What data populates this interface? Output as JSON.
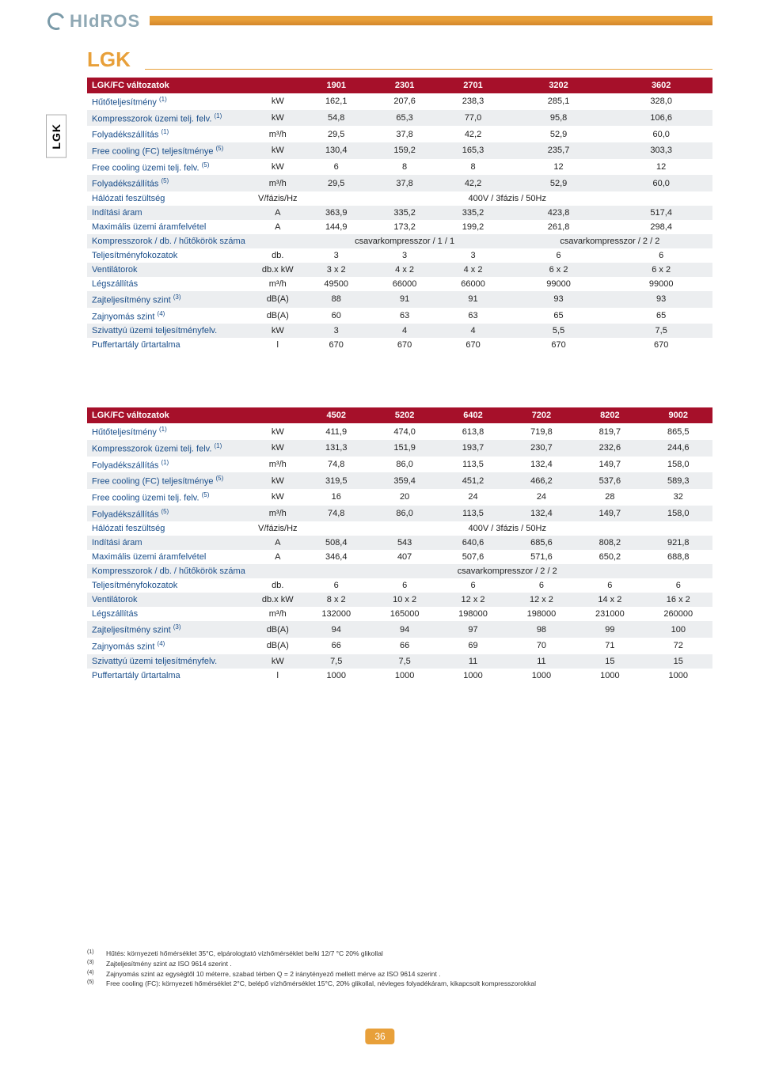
{
  "logo_text": "HIdROS",
  "section_title": "LGK",
  "side_tab": "LGK",
  "page_number": "36",
  "colors": {
    "accent_orange": "#e8a03a",
    "header_red": "#a6102a",
    "row_alt": "#eceef0",
    "label_blue": "#1a4e8a",
    "logo_grey": "#8fa8b4"
  },
  "table1": {
    "header": [
      "LGK/FC változatok",
      "",
      "1901",
      "2301",
      "2701",
      "3202",
      "3602"
    ],
    "rows": [
      {
        "label": "Hűtőteljesítmény",
        "sup": "(1)",
        "unit": "kW",
        "vals": [
          "162,1",
          "207,6",
          "238,3",
          "285,1",
          "328,0"
        ]
      },
      {
        "label": "Kompresszorok üzemi telj. felv.",
        "sup": "(1)",
        "unit": "kW",
        "vals": [
          "54,8",
          "65,3",
          "77,0",
          "95,8",
          "106,6"
        ]
      },
      {
        "label": "Folyadékszállítás",
        "sup": "(1)",
        "unit": "m³/h",
        "vals": [
          "29,5",
          "37,8",
          "42,2",
          "52,9",
          "60,0"
        ]
      },
      {
        "label": "Free cooling (FC) teljesítménye",
        "sup": "(5)",
        "unit": "kW",
        "vals": [
          "130,4",
          "159,2",
          "165,3",
          "235,7",
          "303,3"
        ]
      },
      {
        "label": "Free cooling üzemi telj. felv.",
        "sup": "(5)",
        "unit": "kW",
        "vals": [
          "6",
          "8",
          "8",
          "12",
          "12"
        ]
      },
      {
        "label": "Folyadékszállítás",
        "sup": "(5)",
        "unit": "m³/h",
        "vals": [
          "29,5",
          "37,8",
          "42,2",
          "52,9",
          "60,0"
        ]
      },
      {
        "label": "Hálózati feszültség",
        "unit": "V/fázis/Hz",
        "merged": "400V / 3fázis / 50Hz"
      },
      {
        "label": "Indítási áram",
        "unit": "A",
        "vals": [
          "363,9",
          "335,2",
          "335,2",
          "423,8",
          "517,4"
        ]
      },
      {
        "label": "Maximális üzemi áramfelvétel",
        "unit": "A",
        "vals": [
          "144,9",
          "173,2",
          "199,2",
          "261,8",
          "298,4"
        ]
      },
      {
        "label": "Kompresszorok / db. / hűtőkörök száma",
        "unit": "",
        "split": [
          "csavarkompresszor / 1 / 1",
          "csavarkompresszor / 2 / 2"
        ],
        "split_cols": [
          3,
          2
        ]
      },
      {
        "label": "Teljesítményfokozatok",
        "unit": "db.",
        "vals": [
          "3",
          "3",
          "3",
          "6",
          "6"
        ]
      },
      {
        "label": "Ventilátorok",
        "unit": "db.x kW",
        "vals": [
          "3 x 2",
          "4 x 2",
          "4 x 2",
          "6 x 2",
          "6 x 2"
        ]
      },
      {
        "label": "Légszállítás",
        "unit": "m³/h",
        "vals": [
          "49500",
          "66000",
          "66000",
          "99000",
          "99000"
        ]
      },
      {
        "label": "Zajteljesítmény szint",
        "sup": "(3)",
        "unit": "dB(A)",
        "vals": [
          "88",
          "91",
          "91",
          "93",
          "93"
        ]
      },
      {
        "label": "Zajnyomás szint",
        "sup": "(4)",
        "unit": "dB(A)",
        "vals": [
          "60",
          "63",
          "63",
          "65",
          "65"
        ]
      },
      {
        "label": "Szivattyú üzemi teljesítményfelv.",
        "unit": "kW",
        "vals": [
          "3",
          "4",
          "4",
          "5,5",
          "7,5"
        ]
      },
      {
        "label": "Puffertartály űrtartalma",
        "unit": "l",
        "vals": [
          "670",
          "670",
          "670",
          "670",
          "670"
        ]
      }
    ]
  },
  "table2": {
    "header": [
      "LGK/FC változatok",
      "",
      "4502",
      "5202",
      "6402",
      "7202",
      "8202",
      "9002"
    ],
    "rows": [
      {
        "label": "Hűtőteljesítmény",
        "sup": "(1)",
        "unit": "kW",
        "vals": [
          "411,9",
          "474,0",
          "613,8",
          "719,8",
          "819,7",
          "865,5"
        ]
      },
      {
        "label": "Kompresszorok üzemi telj. felv.",
        "sup": "(1)",
        "unit": "kW",
        "vals": [
          "131,3",
          "151,9",
          "193,7",
          "230,7",
          "232,6",
          "244,6"
        ]
      },
      {
        "label": "Folyadékszállítás",
        "sup": "(1)",
        "unit": "m³/h",
        "vals": [
          "74,8",
          "86,0",
          "113,5",
          "132,4",
          "149,7",
          "158,0"
        ]
      },
      {
        "label": "Free cooling (FC) teljesítménye",
        "sup": "(5)",
        "unit": "kW",
        "vals": [
          "319,5",
          "359,4",
          "451,2",
          "466,2",
          "537,6",
          "589,3"
        ]
      },
      {
        "label": "Free cooling üzemi telj. felv.",
        "sup": "(5)",
        "unit": "kW",
        "vals": [
          "16",
          "20",
          "24",
          "24",
          "28",
          "32"
        ]
      },
      {
        "label": "Folyadékszállítás",
        "sup": "(5)",
        "unit": "m³/h",
        "vals": [
          "74,8",
          "86,0",
          "113,5",
          "132,4",
          "149,7",
          "158,0"
        ]
      },
      {
        "label": "Hálózati feszültség",
        "unit": "V/fázis/Hz",
        "merged": "400V / 3fázis / 50Hz"
      },
      {
        "label": "Indítási áram",
        "unit": "A",
        "vals": [
          "508,4",
          "543",
          "640,6",
          "685,6",
          "808,2",
          "921,8"
        ]
      },
      {
        "label": "Maximális üzemi áramfelvétel",
        "unit": "A",
        "vals": [
          "346,4",
          "407",
          "507,6",
          "571,6",
          "650,2",
          "688,8"
        ]
      },
      {
        "label": "Kompresszorok / db. / hűtőkörök száma",
        "unit": "",
        "merged": "csavarkompresszor / 2 / 2"
      },
      {
        "label": "Teljesítményfokozatok",
        "unit": "db.",
        "vals": [
          "6",
          "6",
          "6",
          "6",
          "6",
          "6"
        ]
      },
      {
        "label": "Ventilátorok",
        "unit": "db.x kW",
        "vals": [
          "8 x 2",
          "10 x 2",
          "12 x 2",
          "12 x 2",
          "14 x 2",
          "16 x 2"
        ]
      },
      {
        "label": "Légszállítás",
        "unit": "m³/h",
        "vals": [
          "132000",
          "165000",
          "198000",
          "198000",
          "231000",
          "260000"
        ]
      },
      {
        "label": "Zajteljesítmény szint",
        "sup": "(3)",
        "unit": "dB(A)",
        "vals": [
          "94",
          "94",
          "97",
          "98",
          "99",
          "100"
        ]
      },
      {
        "label": "Zajnyomás szint",
        "sup": "(4)",
        "unit": "dB(A)",
        "vals": [
          "66",
          "66",
          "69",
          "70",
          "71",
          "72"
        ]
      },
      {
        "label": "Szivattyú üzemi teljesítményfelv.",
        "unit": "kW",
        "vals": [
          "7,5",
          "7,5",
          "11",
          "11",
          "15",
          "15"
        ]
      },
      {
        "label": "Puffertartály űrtartalma",
        "unit": "l",
        "vals": [
          "1000",
          "1000",
          "1000",
          "1000",
          "1000",
          "1000"
        ]
      }
    ]
  },
  "footnotes": [
    {
      "key": "(1)",
      "text": "Hűtés: környezeti hőmérséklet 35°C, elpárologtató vízhőmérséklet be/ki 12/7 °C 20% glikollal"
    },
    {
      "key": "(3)",
      "text": "Zajteljesítmény szint az ISO 9614 szerint ."
    },
    {
      "key": "(4)",
      "text": "Zajnyomás szint az egységtől 10 méterre,  szabad térben Q = 2 iránytényező mellett mérve az ISO 9614 szerint ."
    },
    {
      "key": "(5)",
      "text": "Free cooling (FC): környezeti hőmérséklet 2°C, belépő vízhőmérséklet 15°C, 20% glikollal, névleges folyadékáram, kikapcsolt kompresszorokkal"
    }
  ]
}
